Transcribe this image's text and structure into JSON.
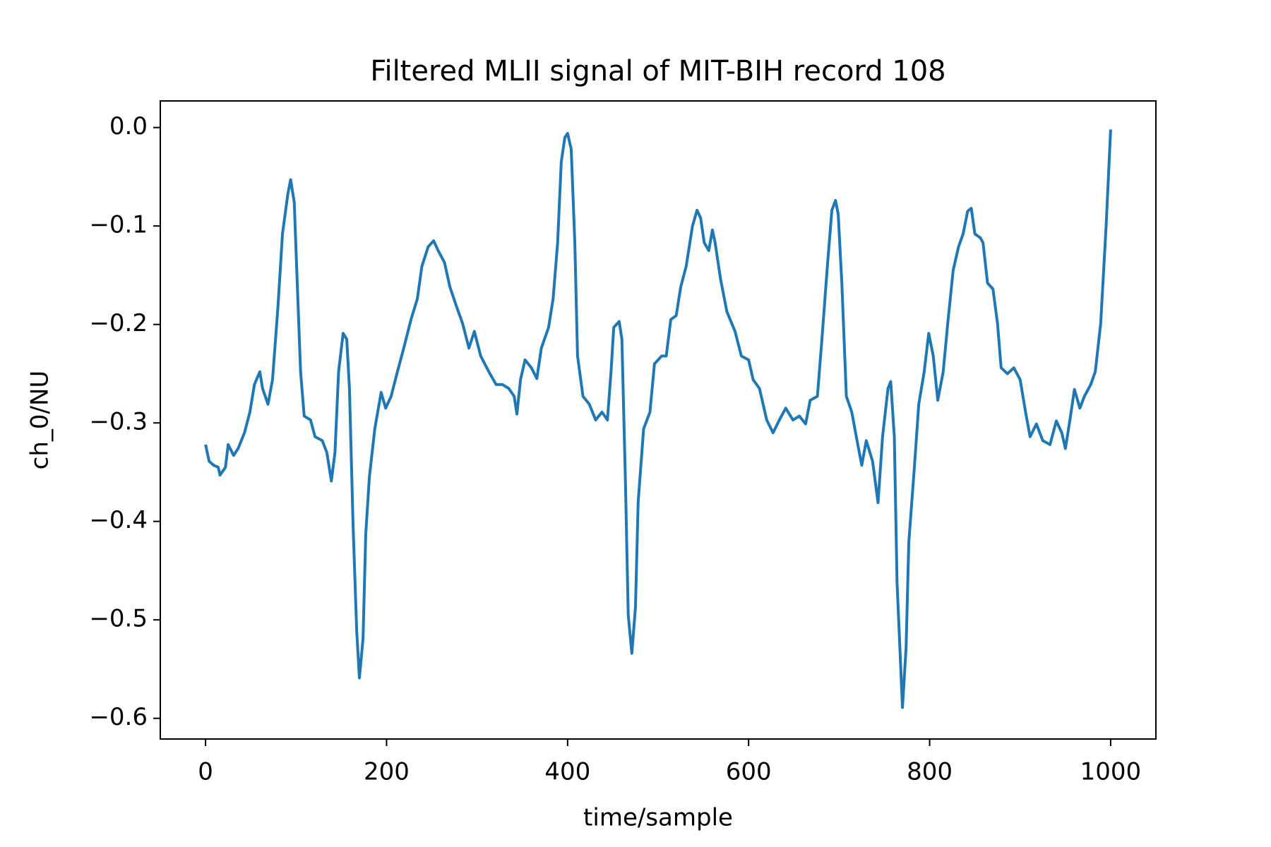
{
  "chart_data": {
    "type": "line",
    "title": "Filtered MLII signal of MIT-BIH record 108",
    "x_label": "time/sample",
    "y_label": "ch_0/NU",
    "color": "#1f77b4",
    "x": [
      0,
      4,
      9,
      14,
      16,
      22,
      25,
      31,
      36,
      43,
      49,
      54,
      60,
      63,
      69,
      74,
      80,
      85,
      91,
      94,
      98,
      101,
      105,
      109,
      116,
      121,
      129,
      134,
      139,
      143,
      147,
      152,
      156,
      159,
      163,
      167,
      170,
      174,
      177,
      181,
      187,
      194,
      199,
      205,
      212,
      219,
      227,
      234,
      239,
      246,
      252,
      257,
      264,
      270,
      277,
      284,
      291,
      297,
      304,
      313,
      321,
      328,
      335,
      341,
      344,
      348,
      353,
      360,
      366,
      371,
      379,
      384,
      389,
      393,
      397,
      400,
      404,
      408,
      411,
      417,
      424,
      431,
      438,
      444,
      448,
      451,
      457,
      460,
      464,
      467,
      471,
      475,
      478,
      484,
      491,
      496,
      504,
      509,
      514,
      520,
      525,
      531,
      538,
      543,
      547,
      551,
      556,
      560,
      563,
      569,
      576,
      585,
      592,
      600,
      605,
      612,
      620,
      627,
      634,
      641,
      649,
      656,
      663,
      668,
      676,
      681,
      687,
      692,
      696,
      699,
      703,
      708,
      714,
      719,
      725,
      730,
      737,
      743,
      748,
      754,
      757,
      761,
      764,
      770,
      774,
      777,
      783,
      788,
      794,
      799,
      804,
      809,
      815,
      820,
      826,
      832,
      837,
      842,
      846,
      850,
      856,
      859,
      864,
      870,
      875,
      879,
      886,
      893,
      900,
      906,
      911,
      918,
      925,
      933,
      940,
      946,
      950,
      955,
      960,
      966,
      971,
      978,
      983,
      989,
      995,
      1000
    ],
    "values": [
      -0.322,
      -0.339,
      -0.343,
      -0.345,
      -0.353,
      -0.345,
      -0.322,
      -0.333,
      -0.326,
      -0.31,
      -0.289,
      -0.261,
      -0.248,
      -0.265,
      -0.281,
      -0.256,
      -0.182,
      -0.108,
      -0.067,
      -0.053,
      -0.076,
      -0.15,
      -0.248,
      -0.293,
      -0.297,
      -0.314,
      -0.318,
      -0.33,
      -0.359,
      -0.33,
      -0.248,
      -0.209,
      -0.215,
      -0.265,
      -0.404,
      -0.511,
      -0.559,
      -0.519,
      -0.413,
      -0.355,
      -0.306,
      -0.269,
      -0.285,
      -0.273,
      -0.248,
      -0.224,
      -0.195,
      -0.174,
      -0.141,
      -0.121,
      -0.115,
      -0.125,
      -0.137,
      -0.162,
      -0.181,
      -0.199,
      -0.224,
      -0.207,
      -0.232,
      -0.248,
      -0.261,
      -0.261,
      -0.265,
      -0.273,
      -0.291,
      -0.256,
      -0.236,
      -0.244,
      -0.255,
      -0.224,
      -0.203,
      -0.174,
      -0.117,
      -0.035,
      -0.01,
      -0.006,
      -0.022,
      -0.117,
      -0.232,
      -0.273,
      -0.281,
      -0.297,
      -0.289,
      -0.297,
      -0.248,
      -0.203,
      -0.197,
      -0.215,
      -0.363,
      -0.495,
      -0.534,
      -0.487,
      -0.38,
      -0.306,
      -0.289,
      -0.24,
      -0.232,
      -0.232,
      -0.195,
      -0.191,
      -0.162,
      -0.141,
      -0.1,
      -0.084,
      -0.092,
      -0.117,
      -0.125,
      -0.104,
      -0.117,
      -0.154,
      -0.187,
      -0.207,
      -0.232,
      -0.236,
      -0.256,
      -0.265,
      -0.297,
      -0.31,
      -0.297,
      -0.285,
      -0.297,
      -0.293,
      -0.301,
      -0.277,
      -0.273,
      -0.215,
      -0.141,
      -0.084,
      -0.074,
      -0.088,
      -0.158,
      -0.273,
      -0.289,
      -0.314,
      -0.343,
      -0.318,
      -0.339,
      -0.381,
      -0.314,
      -0.265,
      -0.258,
      -0.314,
      -0.462,
      -0.589,
      -0.528,
      -0.421,
      -0.347,
      -0.281,
      -0.248,
      -0.209,
      -0.232,
      -0.277,
      -0.248,
      -0.199,
      -0.145,
      -0.121,
      -0.108,
      -0.085,
      -0.082,
      -0.108,
      -0.112,
      -0.117,
      -0.158,
      -0.164,
      -0.199,
      -0.244,
      -0.25,
      -0.244,
      -0.256,
      -0.289,
      -0.314,
      -0.301,
      -0.318,
      -0.322,
      -0.298,
      -0.31,
      -0.326,
      -0.297,
      -0.266,
      -0.285,
      -0.273,
      -0.261,
      -0.248,
      -0.199,
      -0.1,
      -0.002
    ],
    "xlim": [
      -50,
      1050
    ],
    "ylim": [
      -0.621,
      0.027
    ],
    "xticks": [
      0,
      200,
      400,
      600,
      800,
      1000
    ],
    "yticks": [
      {
        "value": 0,
        "label": "0.0"
      },
      {
        "value": -0.1,
        "label": "−0.1"
      },
      {
        "value": -0.2,
        "label": "−0.2"
      },
      {
        "value": -0.3,
        "label": "−0.3"
      },
      {
        "value": -0.4,
        "label": "−0.4"
      },
      {
        "value": -0.5,
        "label": "−0.5"
      },
      {
        "value": -0.6,
        "label": "−0.6"
      }
    ]
  }
}
